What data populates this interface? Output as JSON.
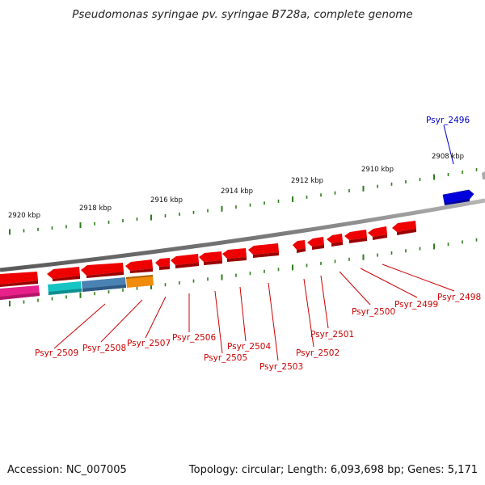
{
  "title": "Pseudomonas syringae pv. syringae B728a, complete genome",
  "footer": {
    "accession": "Accession: NC_007005",
    "stats": "Topology: circular; Length: 6,093,698 bp; Genes: 5,171"
  },
  "colors": {
    "backbone": "#808080",
    "tick": "#2e7d1b",
    "forward_gene": "#0000dd",
    "reverse_gene": "#ee0000",
    "forward_label": "#0000cc",
    "reverse_label": "#cc0000",
    "cog_magenta": "#e8208a",
    "cog_cyan": "#17c4c4",
    "cog_steelblue": "#4a82b4",
    "cog_orange": "#f08c0a"
  },
  "scale_labels": [
    "2920 kbp",
    "2918 kbp",
    "2916 kbp",
    "2914 kbp",
    "2912 kbp",
    "2910 kbp",
    "2908 kbp"
  ],
  "forward_genes": [
    "Psyr_2496"
  ],
  "reverse_genes": [
    "Psyr_2498",
    "Psyr_2499",
    "Psyr_2500",
    "Psyr_2501",
    "Psyr_2502",
    "Psyr_2503",
    "Psyr_2504",
    "Psyr_2505",
    "Psyr_2506",
    "Psyr_2507",
    "Psyr_2508",
    "Psyr_2509"
  ]
}
